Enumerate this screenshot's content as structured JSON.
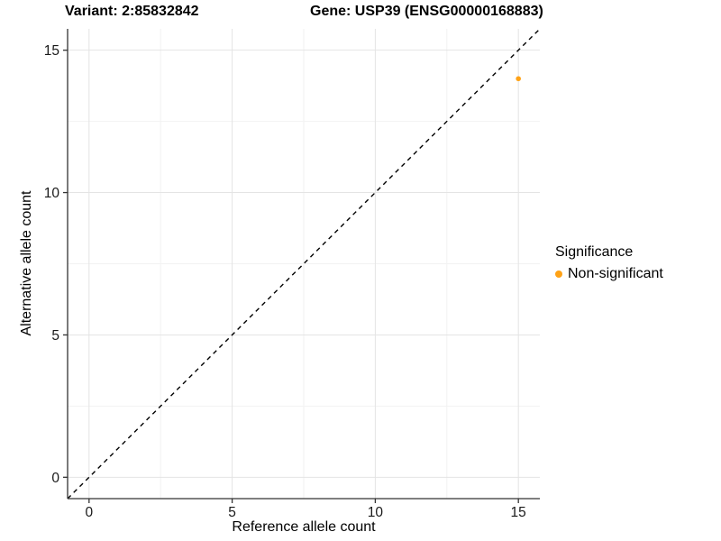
{
  "chart_data": {
    "type": "scatter",
    "titles": {
      "left": "Variant: 2:85832842",
      "right": "Gene: USP39 (ENSG00000168883)"
    },
    "xlabel": "Reference allele count",
    "ylabel": "Alternative allele count",
    "xlim": [
      0,
      15
    ],
    "ylim": [
      0,
      15
    ],
    "axis_expand": 0.75,
    "xticks": [
      0,
      5,
      10,
      15
    ],
    "yticks": [
      0,
      5,
      10,
      15
    ],
    "minor_xticks": [
      2.5,
      7.5,
      12.5
    ],
    "minor_yticks": [
      2.5,
      7.5,
      12.5
    ],
    "grid": true,
    "series": [
      {
        "name": "Non-significant",
        "color": "#FFA216",
        "points": [
          {
            "x": 15,
            "y": 14
          }
        ]
      }
    ],
    "reference_line": {
      "slope": 1,
      "intercept": 0,
      "style": "dashed",
      "color": "#000000"
    },
    "legend": {
      "title": "Significance",
      "position": "right",
      "items": [
        {
          "label": "Non-significant",
          "color": "#FFA216"
        }
      ]
    },
    "colors": {
      "background": "#FFFFFF",
      "grid_major": "#E4E4E4",
      "grid_minor": "#F2F2F2",
      "axis_line": "#333333",
      "tick_mark": "#333333",
      "tick_text": "#1A1A1A"
    }
  }
}
